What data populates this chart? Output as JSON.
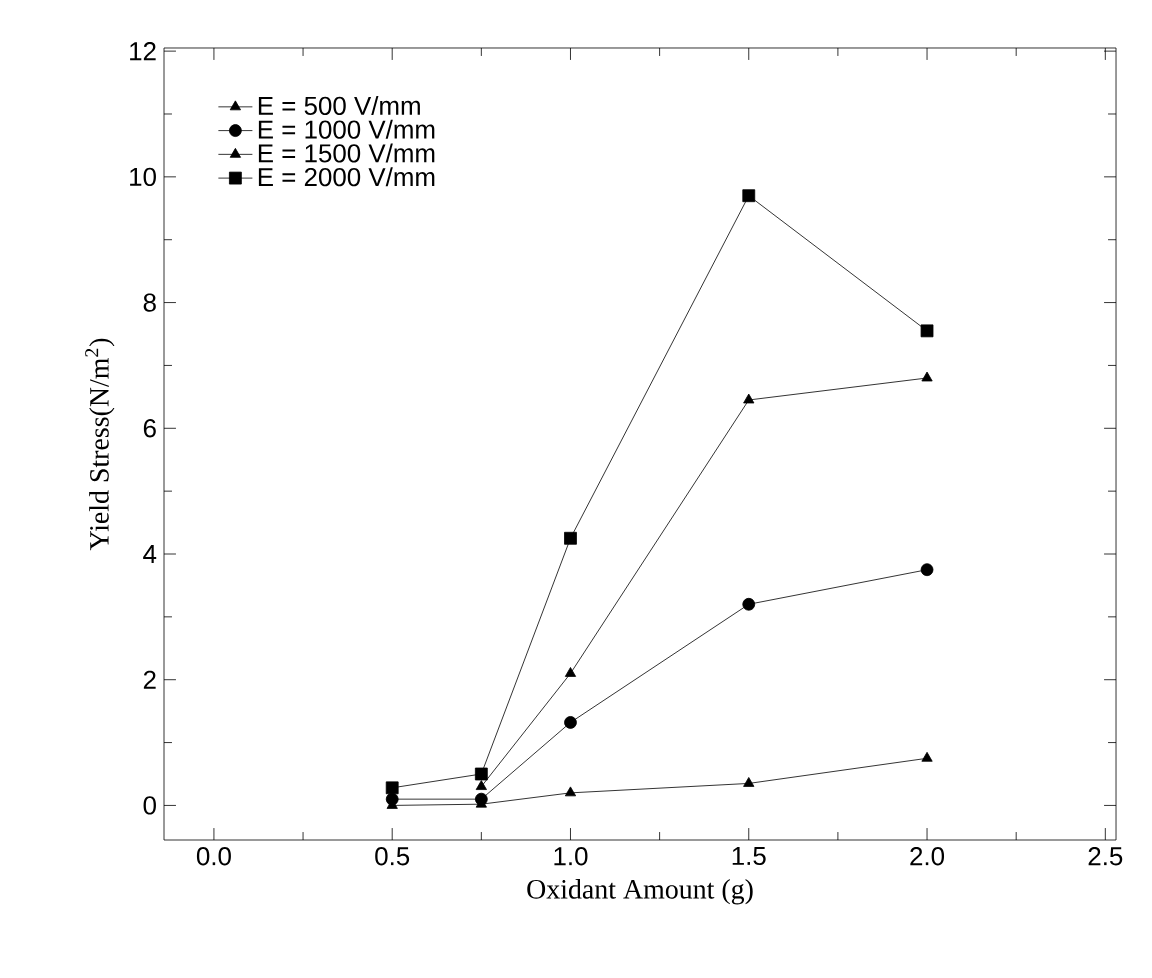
{
  "chart_data": {
    "type": "line",
    "xlabel": "Oxidant Amount (g)",
    "ylabel": "Yield Stress(N/m$^{2}$)",
    "x": [
      0.5,
      0.75,
      1.0,
      1.5,
      2.0
    ],
    "series": [
      {
        "name": "E = 500 V/mm",
        "color": "#000000",
        "marker": "triangle",
        "values": [
          0.0,
          0.02,
          0.2,
          0.35,
          0.75
        ]
      },
      {
        "name": "E = 1000 V/mm",
        "color": "#000000",
        "marker": "circle",
        "values": [
          0.1,
          0.1,
          1.32,
          3.2,
          3.75
        ]
      },
      {
        "name": "E = 1500 V/mm",
        "color": "#000000",
        "marker": "triangle",
        "values": [
          null,
          0.3,
          2.1,
          6.45,
          6.8
        ]
      },
      {
        "name": "E = 2000 V/mm",
        "color": "#000000",
        "marker": "square",
        "values": [
          0.28,
          0.5,
          4.25,
          9.7,
          7.55
        ]
      }
    ],
    "xlim": [
      -0.14,
      2.53
    ],
    "ylim": [
      -0.55,
      12.05
    ],
    "xticks": [
      {
        "value": 0.0,
        "label": "0.0"
      },
      {
        "value": 0.5,
        "label": "0.5"
      },
      {
        "value": 1.0,
        "label": "1.0"
      },
      {
        "value": 1.5,
        "label": "1.5"
      },
      {
        "value": 2.0,
        "label": "2.0"
      },
      {
        "value": 2.5,
        "label": "2.5"
      }
    ],
    "yticks": [
      0,
      2,
      4,
      6,
      8,
      10,
      12
    ],
    "legend": "top left",
    "grid": false,
    "line_style": "solid"
  }
}
